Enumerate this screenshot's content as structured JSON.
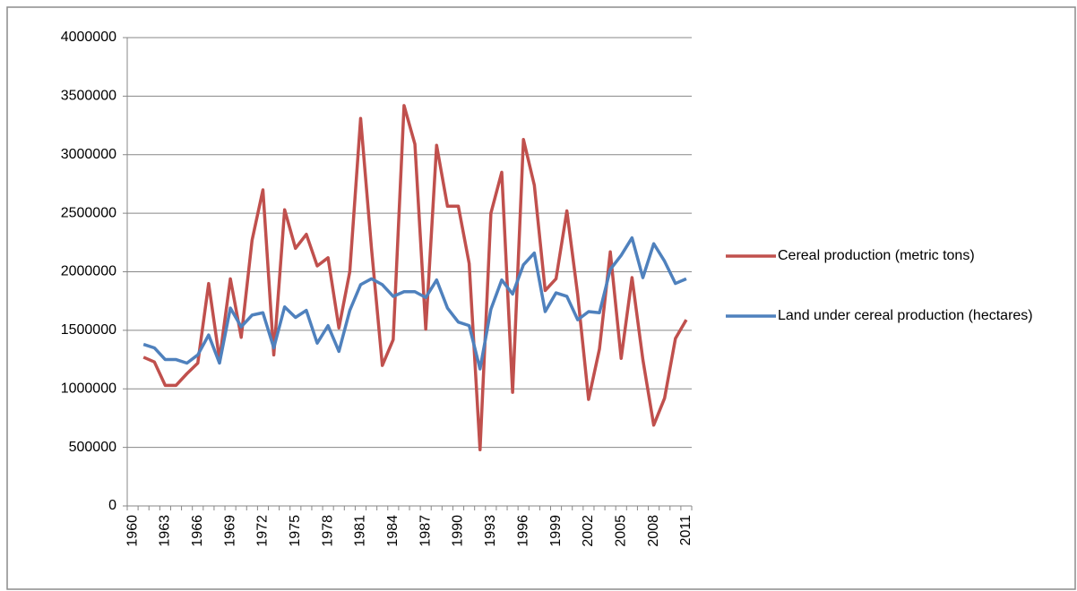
{
  "chart_data": {
    "type": "line",
    "categories": [
      "1960",
      null,
      null,
      "1963",
      null,
      null,
      "1966",
      null,
      null,
      "1969",
      null,
      null,
      "1972",
      null,
      null,
      "1975",
      null,
      null,
      "1978",
      null,
      null,
      "1981",
      null,
      null,
      "1984",
      null,
      null,
      "1987",
      null,
      null,
      "1990",
      null,
      null,
      "1993",
      null,
      null,
      "1996",
      null,
      null,
      "1999",
      null,
      null,
      "2002",
      null,
      null,
      "2005",
      null,
      null,
      "2008",
      null,
      null,
      "2011"
    ],
    "series": [
      {
        "name": "Cereal production (metric tons)",
        "color": "#c0504d",
        "values": [
          null,
          1270000,
          1230000,
          1030000,
          1030000,
          1130000,
          1220000,
          1900000,
          1250000,
          1940000,
          1440000,
          2270000,
          2700000,
          1290000,
          2530000,
          2200000,
          2320000,
          2050000,
          2120000,
          1520000,
          2000000,
          3310000,
          2200000,
          1200000,
          1420000,
          3420000,
          3090000,
          1510000,
          3080000,
          2560000,
          2560000,
          2070000,
          480000,
          2500000,
          2850000,
          970000,
          3130000,
          2740000,
          1840000,
          1940000,
          2520000,
          1800000,
          910000,
          1340000,
          2170000,
          1260000,
          1950000,
          1250000,
          690000,
          920000,
          1430000,
          1590000
        ]
      },
      {
        "name": "Land under cereal production (hectares)",
        "color": "#4f81bd",
        "values": [
          null,
          1380000,
          1350000,
          1250000,
          1250000,
          1220000,
          1290000,
          1460000,
          1220000,
          1690000,
          1530000,
          1630000,
          1650000,
          1350000,
          1700000,
          1610000,
          1670000,
          1390000,
          1540000,
          1320000,
          1670000,
          1890000,
          1940000,
          1890000,
          1790000,
          1830000,
          1830000,
          1780000,
          1930000,
          1690000,
          1570000,
          1540000,
          1170000,
          1680000,
          1930000,
          1810000,
          2060000,
          2160000,
          1660000,
          1820000,
          1790000,
          1590000,
          1660000,
          1650000,
          2020000,
          2140000,
          2290000,
          1950000,
          2240000,
          2090000,
          1900000,
          1940000
        ]
      }
    ],
    "ylim": [
      0,
      4000000
    ],
    "yticks": [
      0,
      500000,
      1000000,
      1500000,
      2000000,
      2500000,
      3000000,
      3500000,
      4000000
    ],
    "grid": true,
    "legend": "right"
  }
}
